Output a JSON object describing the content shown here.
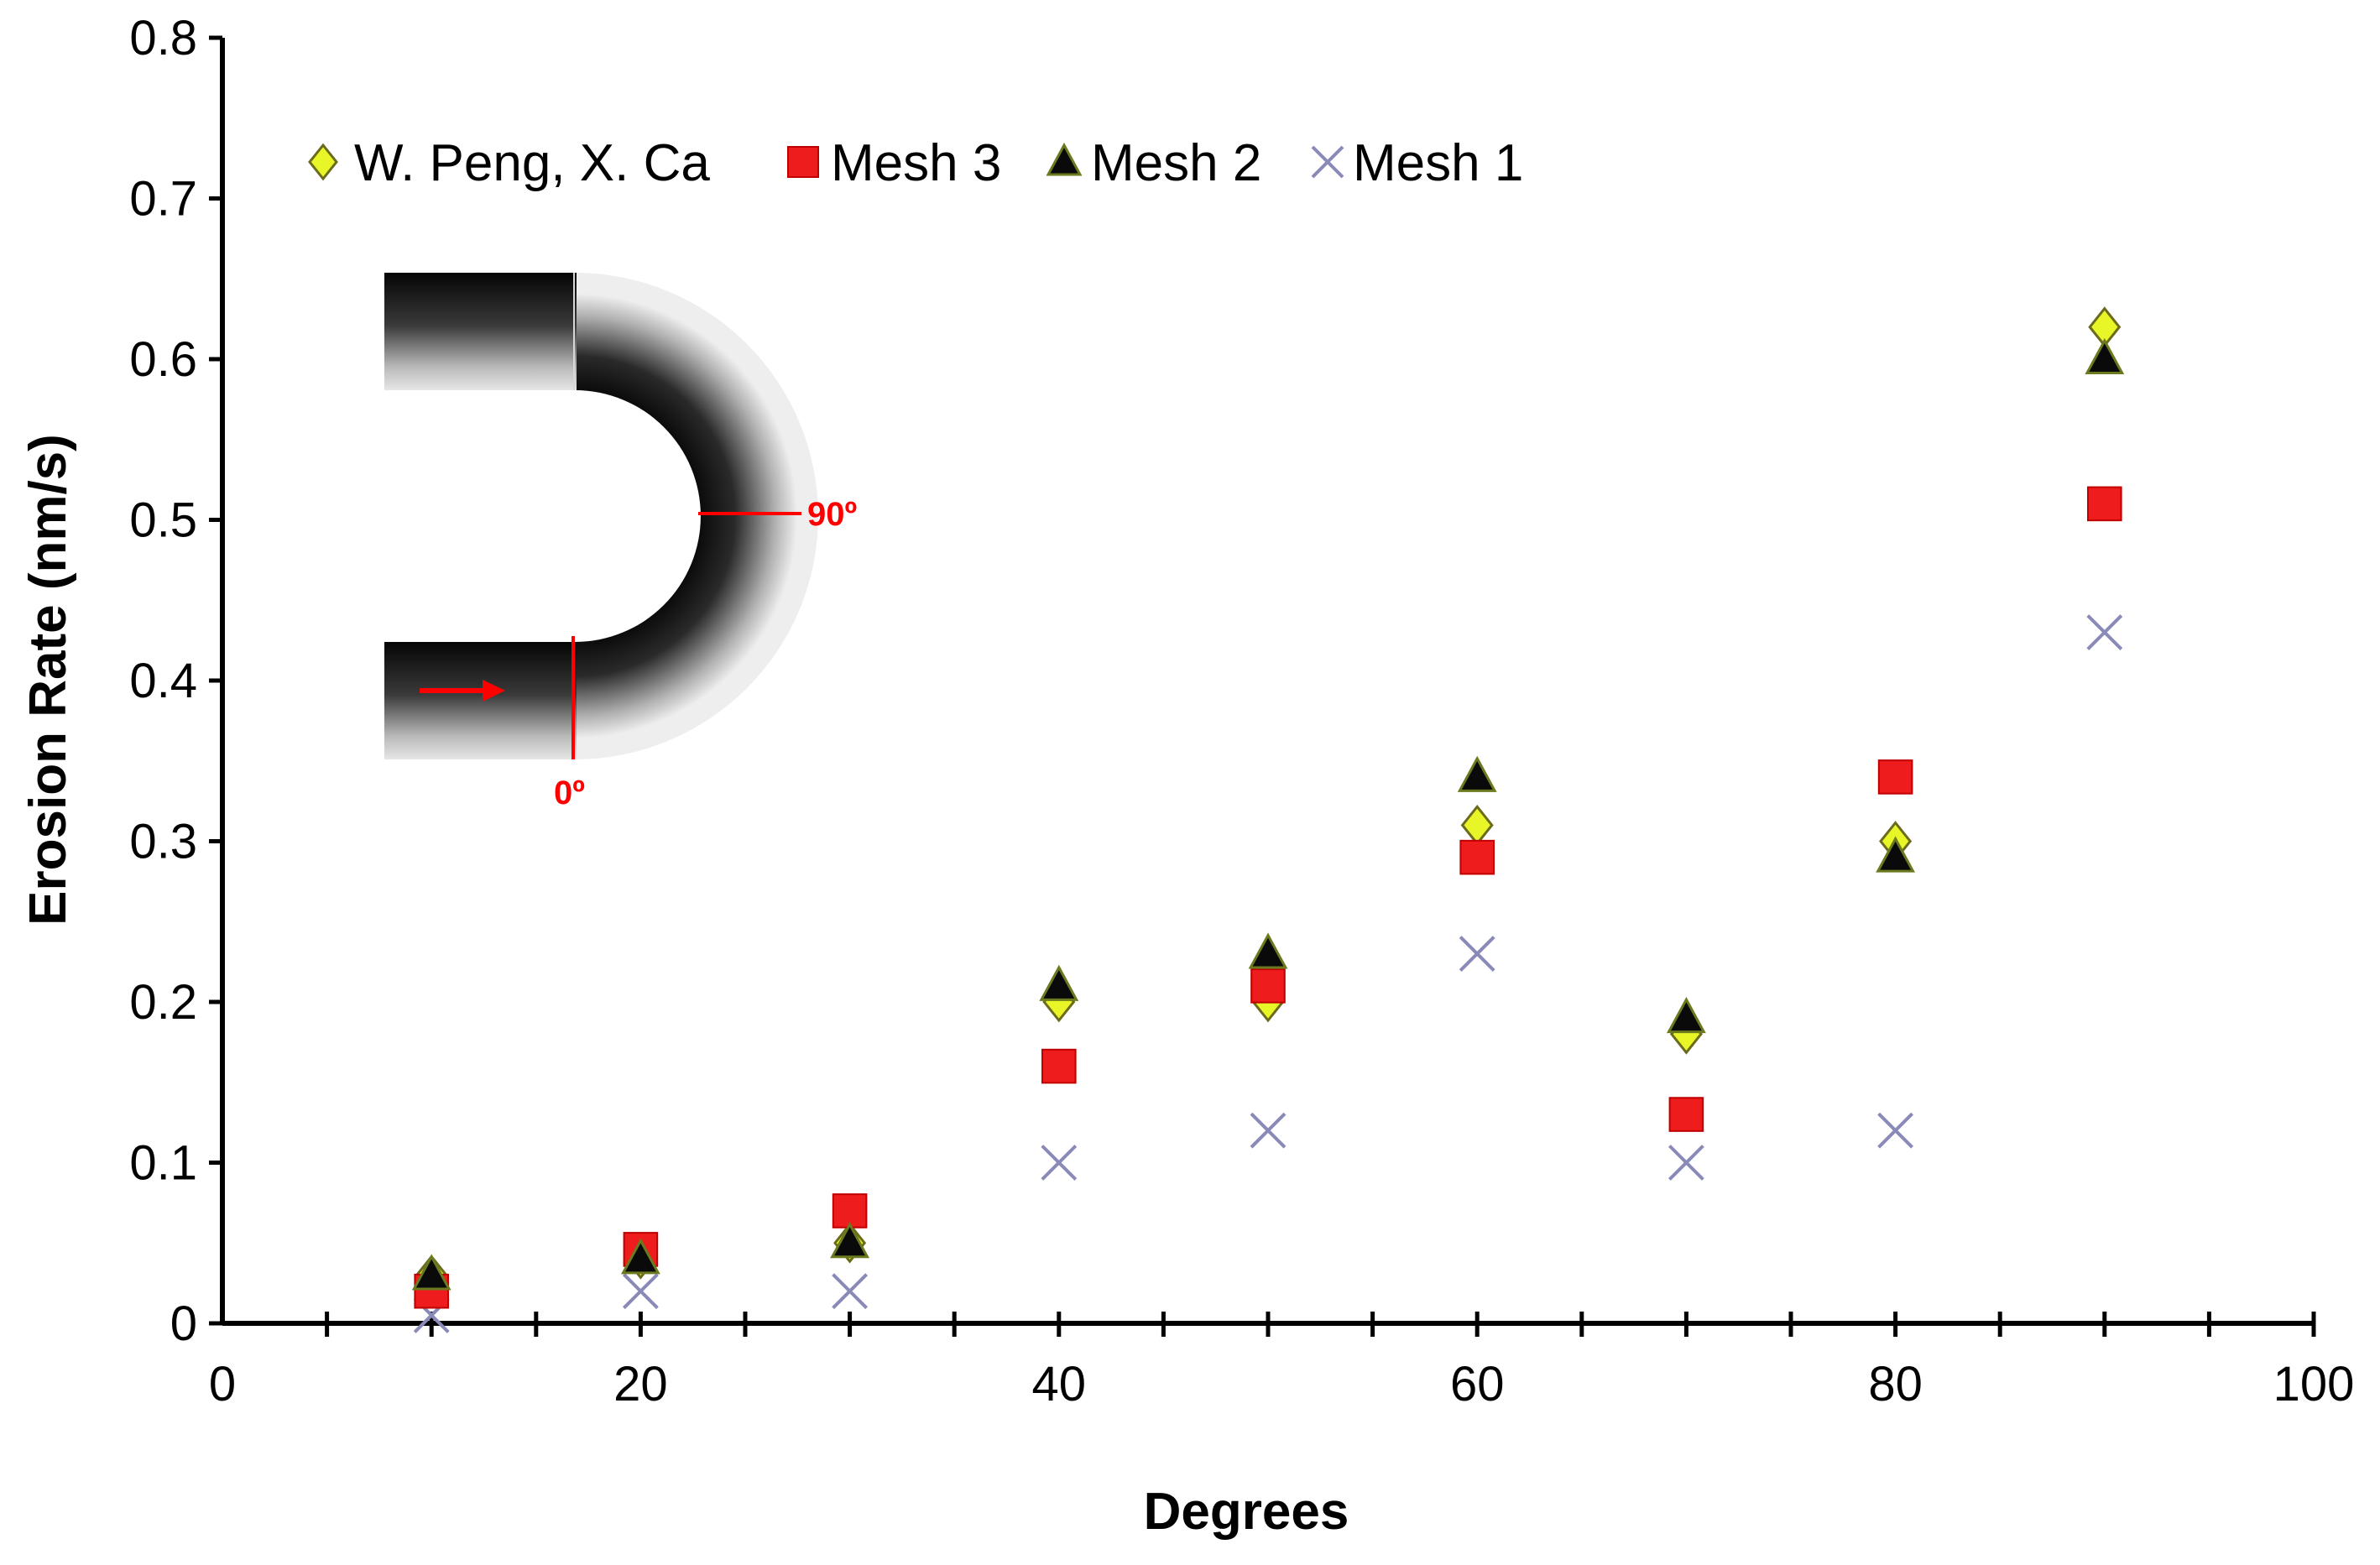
{
  "chart_data": {
    "type": "scatter",
    "title": "",
    "xlabel": "Degrees",
    "ylabel": "Erosion Rate (nm/s)",
    "xlim": [
      0,
      100
    ],
    "ylim": [
      0,
      0.8
    ],
    "x_ticks": [
      "0",
      "20",
      "40",
      "60",
      "80",
      "100"
    ],
    "y_ticks": [
      "0",
      "0.1",
      "0.2",
      "0.3",
      "0.4",
      "0.5",
      "0.6",
      "0.7",
      "0.8"
    ],
    "grid": false,
    "legend_position": "top-left",
    "series": [
      {
        "name": "W. Peng, X. Ca",
        "marker": "diamond",
        "color": "#e8f526",
        "x": [
          10,
          20,
          30,
          40,
          50,
          60,
          70,
          80,
          90
        ],
        "y": [
          0.03,
          0.04,
          0.05,
          0.2,
          0.2,
          0.31,
          0.18,
          0.3,
          0.62
        ]
      },
      {
        "name": "Mesh 3",
        "marker": "square",
        "color": "#ee1c1c",
        "x": [
          10,
          20,
          30,
          40,
          50,
          60,
          70,
          80,
          90
        ],
        "y": [
          0.02,
          0.046,
          0.07,
          0.16,
          0.21,
          0.29,
          0.13,
          0.34,
          0.51
        ]
      },
      {
        "name": "Mesh 2",
        "marker": "triangle",
        "color": "#0a0a0a",
        "x": [
          10,
          20,
          30,
          40,
          50,
          60,
          70,
          80,
          90
        ],
        "y": [
          0.03,
          0.04,
          0.05,
          0.21,
          0.23,
          0.34,
          0.19,
          0.29,
          0.6
        ]
      },
      {
        "name": "Mesh 1",
        "marker": "x",
        "color": "#8a8ab8",
        "x": [
          10,
          20,
          30,
          40,
          50,
          60,
          70,
          80,
          90
        ],
        "y": [
          0.005,
          0.02,
          0.02,
          0.1,
          0.12,
          0.23,
          0.1,
          0.12,
          0.43
        ]
      }
    ],
    "inset": {
      "description_icon": "u-bend-pipe-icon",
      "label_90": "90º",
      "label_0": "0º",
      "annotation_color": "#ff0000"
    }
  }
}
